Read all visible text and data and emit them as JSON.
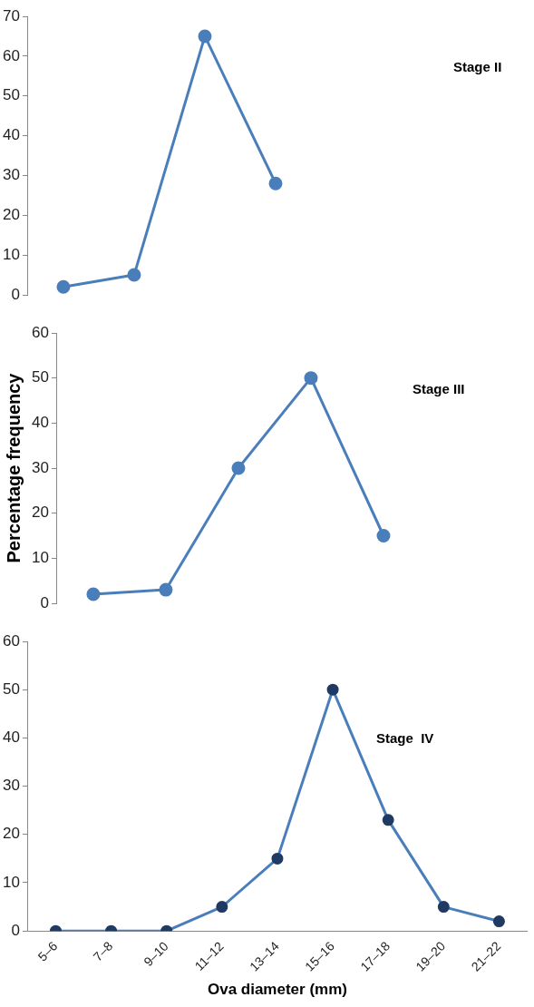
{
  "chart_data": [
    {
      "type": "line",
      "categories": [
        null,
        null,
        null,
        null
      ],
      "series": [
        {
          "color": "#4a7ebb",
          "values": [
            2,
            5,
            65,
            28
          ]
        }
      ],
      "ylim": [
        0,
        70
      ],
      "yticks": [
        0,
        10,
        20,
        30,
        40,
        50,
        60,
        70
      ],
      "annotations": [
        "Stage II"
      ],
      "marker": "circle",
      "line_style": "solid",
      "grid": false,
      "legend": false,
      "tick_labels": "y"
    },
    {
      "type": "line",
      "categories": [
        null,
        null,
        null,
        null,
        null
      ],
      "series": [
        {
          "color": "#4a7ebb",
          "values": [
            2,
            3,
            30,
            50,
            15
          ]
        }
      ],
      "ylim": [
        0,
        60
      ],
      "yticks": [
        0,
        10,
        20,
        30,
        40,
        50,
        60
      ],
      "ylabel": "Percentage frequency",
      "annotations": [
        "Stage III"
      ],
      "marker": "circle",
      "line_style": "solid",
      "grid": false,
      "legend": false,
      "tick_labels": "y"
    },
    {
      "type": "line",
      "categories": [
        "5–6",
        "7–8",
        "9–10",
        "11–12",
        "13–14",
        "15–16",
        "17–18",
        "19–20",
        "21–22"
      ],
      "series": [
        {
          "color": "#4a7ebb",
          "values": [
            0,
            0,
            0,
            5,
            15,
            50,
            23,
            5,
            2
          ]
        }
      ],
      "ylim": [
        0,
        60
      ],
      "yticks": [
        0,
        10,
        20,
        30,
        40,
        50,
        60
      ],
      "xlabel": "Ova diameter (mm)",
      "annotations": [
        "Stage  IV"
      ],
      "marker": "circle",
      "line_style": "solid",
      "grid": false,
      "legend": false
    }
  ]
}
